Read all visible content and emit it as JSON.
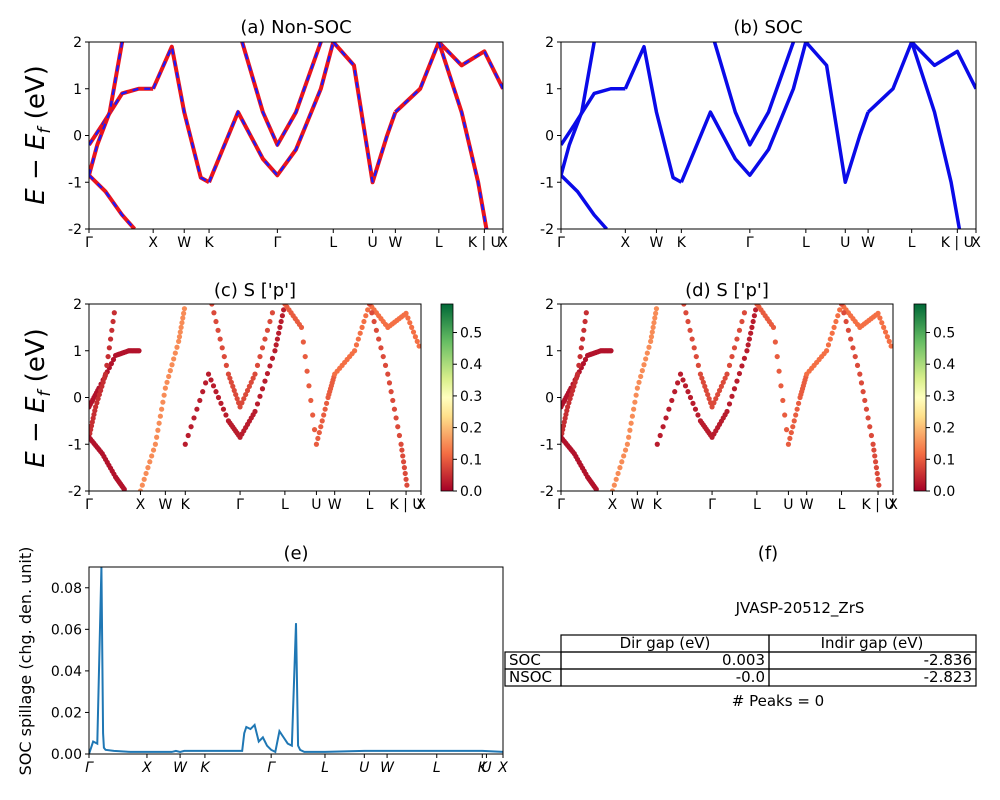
{
  "figure": {
    "panels": {
      "a": {
        "title": "(a) Non-SOC"
      },
      "b": {
        "title": "(b) SOC"
      },
      "c": {
        "title": "(c)  S ['p']"
      },
      "d": {
        "title": "(d) S ['p']"
      },
      "e": {
        "title": "(e)"
      },
      "f": {
        "title": "(f)"
      }
    },
    "band_ylabel": "E − E_f (eV)",
    "band_ylabel_parts": {
      "main": "E − E",
      "sub": "f",
      "tail": " (eV)"
    },
    "spillage_ylabel": "SOC spillage (chg. den. unit)",
    "colors": {
      "nonsoc_line": "#e8141c",
      "nonsoc_dash": "#1a1aff",
      "soc_line": "#0a0ae8",
      "spillage_line": "#1f77b4"
    }
  },
  "chart_data": [
    {
      "id": "a",
      "type": "line",
      "title": "(a) Non-SOC",
      "ylabel": "E − E_f (eV)",
      "ylim": [
        -2,
        2
      ],
      "yticks": [
        -2,
        -1,
        0,
        1,
        2
      ],
      "xticks": [
        "Γ",
        "X",
        "W",
        "K",
        "Γ",
        "L",
        "U",
        "W",
        "L",
        "K | U",
        "X"
      ],
      "xtick_positions": [
        0,
        0.155,
        0.23,
        0.29,
        0.455,
        0.59,
        0.685,
        0.74,
        0.845,
        0.955,
        1.0
      ],
      "series": [
        {
          "x": [
            0,
            0.03,
            0.08,
            0.12,
            0.155
          ],
          "y": [
            -0.2,
            0.2,
            0.9,
            1.0,
            1.0
          ]
        },
        {
          "x": [
            0,
            0.02,
            0.05,
            0.08
          ],
          "y": [
            -0.85,
            -0.2,
            0.5,
            2.0
          ]
        },
        {
          "x": [
            0,
            0.04,
            0.08,
            0.11
          ],
          "y": [
            -0.85,
            -1.2,
            -1.7,
            -2.0
          ]
        },
        {
          "x": [
            0.155,
            0.2,
            0.23,
            0.27,
            0.29
          ],
          "y": [
            1.0,
            1.9,
            0.5,
            -0.9,
            -1.0
          ]
        },
        {
          "x": [
            0.29,
            0.36,
            0.42,
            0.455,
            0.5,
            0.56,
            0.59
          ],
          "y": [
            -1.0,
            0.5,
            -0.5,
            -0.85,
            -0.3,
            1.0,
            2.0
          ]
        },
        {
          "x": [
            0.37,
            0.42,
            0.455,
            0.5,
            0.56
          ],
          "y": [
            2.0,
            0.5,
            -0.2,
            0.5,
            2.0
          ]
        },
        {
          "x": [
            0.59,
            0.64,
            0.685,
            0.72,
            0.74
          ],
          "y": [
            2.0,
            1.5,
            -1.0,
            0.0,
            0.5
          ]
        },
        {
          "x": [
            0.74,
            0.8,
            0.845,
            0.9,
            0.955,
            1.0
          ],
          "y": [
            0.5,
            1.0,
            2.0,
            1.5,
            1.8,
            1.0
          ]
        },
        {
          "x": [
            0.845,
            0.9,
            0.94,
            0.96
          ],
          "y": [
            2.0,
            0.5,
            -1.0,
            -2.0
          ]
        }
      ]
    },
    {
      "id": "b",
      "type": "line",
      "title": "(b) SOC",
      "ylim": [
        -2,
        2
      ],
      "yticks": [
        -2,
        -1,
        0,
        1,
        2
      ],
      "xticks": [
        "Γ",
        "X",
        "W",
        "K",
        "Γ",
        "L",
        "U",
        "W",
        "L",
        "K | U",
        "X"
      ],
      "xtick_positions": [
        0,
        0.155,
        0.23,
        0.29,
        0.455,
        0.59,
        0.685,
        0.74,
        0.845,
        0.955,
        1.0
      ],
      "series": [
        {
          "x": [
            0,
            0.03,
            0.08,
            0.12,
            0.155
          ],
          "y": [
            -0.2,
            0.2,
            0.9,
            1.0,
            1.0
          ]
        },
        {
          "x": [
            0,
            0.02,
            0.05,
            0.08
          ],
          "y": [
            -0.85,
            -0.2,
            0.5,
            2.0
          ]
        },
        {
          "x": [
            0,
            0.04,
            0.08,
            0.11
          ],
          "y": [
            -0.85,
            -1.2,
            -1.7,
            -2.0
          ]
        },
        {
          "x": [
            0.155,
            0.2,
            0.23,
            0.27,
            0.29
          ],
          "y": [
            1.0,
            1.9,
            0.5,
            -0.9,
            -1.0
          ]
        },
        {
          "x": [
            0.29,
            0.36,
            0.42,
            0.455,
            0.5,
            0.56,
            0.59
          ],
          "y": [
            -1.0,
            0.5,
            -0.5,
            -0.85,
            -0.3,
            1.0,
            2.0
          ]
        },
        {
          "x": [
            0.37,
            0.42,
            0.455,
            0.5,
            0.56
          ],
          "y": [
            2.0,
            0.5,
            -0.2,
            0.5,
            2.0
          ]
        },
        {
          "x": [
            0.59,
            0.64,
            0.685,
            0.72,
            0.74
          ],
          "y": [
            2.0,
            1.5,
            -1.0,
            0.0,
            0.5
          ]
        },
        {
          "x": [
            0.74,
            0.8,
            0.845,
            0.9,
            0.955,
            1.0
          ],
          "y": [
            0.5,
            1.0,
            2.0,
            1.5,
            1.8,
            1.0
          ]
        },
        {
          "x": [
            0.845,
            0.9,
            0.94,
            0.96
          ],
          "y": [
            2.0,
            0.5,
            -1.0,
            -2.0
          ]
        }
      ]
    },
    {
      "id": "c",
      "type": "scatter",
      "title": "(c)  S ['p']",
      "ylabel": "E − E_f (eV)",
      "ylim": [
        -2,
        2
      ],
      "yticks": [
        -2,
        -1,
        0,
        1,
        2
      ],
      "xticks": [
        "Γ",
        "X",
        "W",
        "K",
        "Γ",
        "L",
        "U",
        "W",
        "L",
        "K | U",
        "X"
      ],
      "xtick_positions": [
        0,
        0.155,
        0.23,
        0.29,
        0.455,
        0.59,
        0.685,
        0.74,
        0.845,
        0.955,
        1.0
      ],
      "colorbar": {
        "ticks": [
          0.0,
          0.1,
          0.2,
          0.3,
          0.4,
          0.5
        ],
        "range": [
          0,
          0.59
        ],
        "colormap": "RdYlGn"
      },
      "series": [
        {
          "x": [
            0,
            0.03,
            0.08,
            0.12,
            0.155
          ],
          "y": [
            -0.2,
            0.2,
            0.9,
            1.0,
            1.0
          ],
          "c": 0.02
        },
        {
          "x": [
            0,
            0.02,
            0.05,
            0.08
          ],
          "y": [
            -0.85,
            -0.2,
            0.5,
            2.0
          ],
          "c": 0.05
        },
        {
          "x": [
            0,
            0.04,
            0.08,
            0.11
          ],
          "y": [
            -0.85,
            -1.2,
            -1.7,
            -2.0
          ],
          "c": 0.02
        },
        {
          "x": [
            0.155,
            0.2,
            0.23,
            0.27,
            0.29
          ],
          "y": [
            -2.0,
            -1.0,
            0.2,
            1.2,
            2.0
          ],
          "c": 0.15
        },
        {
          "x": [
            0.29,
            0.36,
            0.42,
            0.455,
            0.5,
            0.56,
            0.59
          ],
          "y": [
            -1.0,
            0.5,
            -0.5,
            -0.85,
            -0.3,
            1.0,
            2.0
          ],
          "c": 0.03
        },
        {
          "x": [
            0.37,
            0.42,
            0.455,
            0.5,
            0.56
          ],
          "y": [
            2.0,
            0.5,
            -0.2,
            0.5,
            2.0
          ],
          "c": 0.08
        },
        {
          "x": [
            0.59,
            0.64,
            0.685,
            0.72,
            0.74
          ],
          "y": [
            2.0,
            1.5,
            -1.0,
            0.0,
            0.5
          ],
          "c": 0.1
        },
        {
          "x": [
            0.74,
            0.8,
            0.845,
            0.9,
            0.955,
            1.0
          ],
          "y": [
            0.5,
            1.0,
            2.0,
            1.5,
            1.8,
            1.0
          ],
          "c": 0.12
        },
        {
          "x": [
            0.845,
            0.9,
            0.94,
            0.96
          ],
          "y": [
            2.0,
            0.5,
            -1.0,
            -2.0
          ],
          "c": 0.08
        }
      ]
    },
    {
      "id": "d",
      "type": "scatter",
      "title": "(d) S ['p']",
      "ylim": [
        -2,
        2
      ],
      "yticks": [
        -2,
        -1,
        0,
        1,
        2
      ],
      "xticks": [
        "Γ",
        "X",
        "W",
        "K",
        "Γ",
        "L",
        "U",
        "W",
        "L",
        "K | U",
        "X"
      ],
      "xtick_positions": [
        0,
        0.155,
        0.23,
        0.29,
        0.455,
        0.59,
        0.685,
        0.74,
        0.845,
        0.955,
        1.0
      ],
      "colorbar": {
        "ticks": [
          0.0,
          0.1,
          0.2,
          0.3,
          0.4,
          0.5
        ],
        "range": [
          0,
          0.59
        ],
        "colormap": "RdYlGn"
      },
      "series": [
        {
          "x": [
            0,
            0.03,
            0.08,
            0.12,
            0.155
          ],
          "y": [
            -0.2,
            0.2,
            0.9,
            1.0,
            1.0
          ],
          "c": 0.02
        },
        {
          "x": [
            0,
            0.02,
            0.05,
            0.08
          ],
          "y": [
            -0.85,
            -0.2,
            0.5,
            2.0
          ],
          "c": 0.05
        },
        {
          "x": [
            0,
            0.04,
            0.08,
            0.11
          ],
          "y": [
            -0.85,
            -1.2,
            -1.7,
            -2.0
          ],
          "c": 0.02
        },
        {
          "x": [
            0.155,
            0.2,
            0.23,
            0.27,
            0.29
          ],
          "y": [
            -2.0,
            -1.0,
            0.2,
            1.2,
            2.0
          ],
          "c": 0.15
        },
        {
          "x": [
            0.29,
            0.36,
            0.42,
            0.455,
            0.5,
            0.56,
            0.59
          ],
          "y": [
            -1.0,
            0.5,
            -0.5,
            -0.85,
            -0.3,
            1.0,
            2.0
          ],
          "c": 0.03
        },
        {
          "x": [
            0.37,
            0.42,
            0.455,
            0.5,
            0.56
          ],
          "y": [
            2.0,
            0.5,
            -0.2,
            0.5,
            2.0
          ],
          "c": 0.08
        },
        {
          "x": [
            0.59,
            0.64,
            0.685,
            0.72,
            0.74
          ],
          "y": [
            2.0,
            1.5,
            -1.0,
            0.0,
            0.5
          ],
          "c": 0.1
        },
        {
          "x": [
            0.74,
            0.8,
            0.845,
            0.9,
            0.955,
            1.0
          ],
          "y": [
            0.5,
            1.0,
            2.0,
            1.5,
            1.8,
            1.0
          ],
          "c": 0.12
        },
        {
          "x": [
            0.845,
            0.9,
            0.94,
            0.96
          ],
          "y": [
            2.0,
            0.5,
            -1.0,
            -2.0
          ],
          "c": 0.08
        }
      ]
    },
    {
      "id": "e",
      "type": "line",
      "title": "(e)",
      "ylabel": "SOC spillage (chg. den. unit)",
      "ylim": [
        0,
        0.09
      ],
      "yticks": [
        0.0,
        0.02,
        0.04,
        0.06,
        0.08
      ],
      "ytick_labels": [
        "0.00",
        "0.02",
        "0.04",
        "0.06",
        "0.08"
      ],
      "xticks": [
        "Γ",
        "X",
        "W",
        "K",
        "Γ",
        "L",
        "U",
        "W",
        "L",
        "K",
        "U",
        "X"
      ],
      "xtick_positions": [
        0,
        0.14,
        0.22,
        0.28,
        0.44,
        0.57,
        0.665,
        0.72,
        0.84,
        0.95,
        0.96,
        1.0
      ],
      "x": [
        0,
        0.01,
        0.02,
        0.03,
        0.032,
        0.034,
        0.036,
        0.04,
        0.06,
        0.1,
        0.14,
        0.2,
        0.21,
        0.22,
        0.23,
        0.28,
        0.37,
        0.375,
        0.38,
        0.39,
        0.4,
        0.41,
        0.42,
        0.43,
        0.44,
        0.45,
        0.46,
        0.47,
        0.48,
        0.49,
        0.5,
        0.505,
        0.51,
        0.52,
        0.57,
        0.665,
        0.72,
        0.84,
        0.9,
        0.95,
        1.0
      ],
      "y": [
        0.0,
        0.006,
        0.005,
        0.09,
        0.05,
        0.01,
        0.003,
        0.002,
        0.0015,
        0.001,
        0.001,
        0.001,
        0.0015,
        0.001,
        0.0015,
        0.0015,
        0.0015,
        0.01,
        0.013,
        0.012,
        0.014,
        0.006,
        0.008,
        0.004,
        0.002,
        0.001,
        0.011,
        0.008,
        0.005,
        0.004,
        0.063,
        0.004,
        0.002,
        0.001,
        0.001,
        0.0015,
        0.0015,
        0.0015,
        0.0015,
        0.0015,
        0.001
      ]
    },
    {
      "id": "f",
      "type": "table",
      "title": "(f)",
      "heading": "JVASP-20512_ZrS",
      "columns": [
        "",
        "Dir gap (eV)",
        "Indir gap (eV)"
      ],
      "rows": [
        [
          "SOC",
          "0.003",
          "-2.836"
        ],
        [
          "NSOC",
          "-0.0",
          "-2.823"
        ]
      ],
      "footer": "# Peaks = 0"
    }
  ]
}
